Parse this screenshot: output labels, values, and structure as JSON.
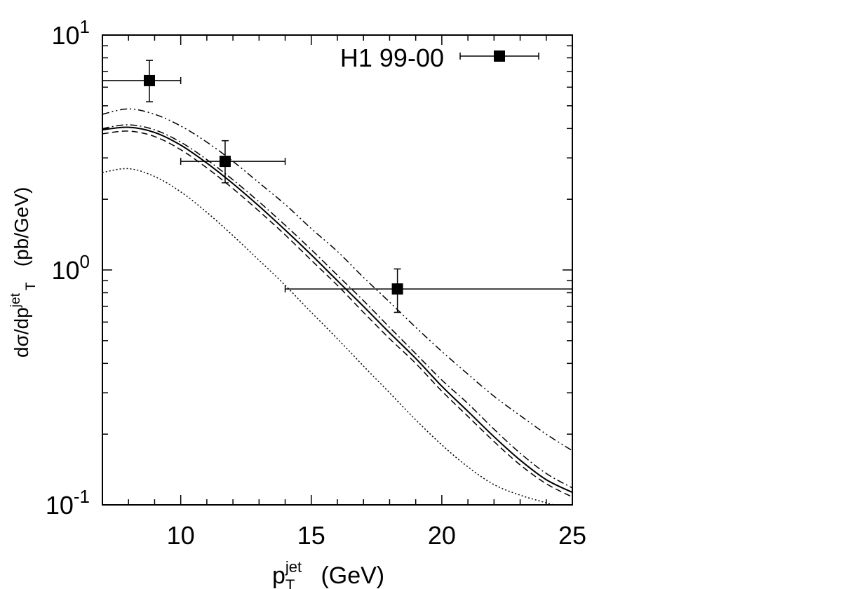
{
  "chart_data": {
    "type": "line",
    "title": "",
    "xlabel": {
      "main": "p",
      "sup": "jet",
      "sub": "T",
      "tail": " (GeV)"
    },
    "ylabel": {
      "main": "dσ/dp",
      "sup": "jet",
      "sub": "T",
      "tail": "  (pb/GeV)"
    },
    "xlim": [
      7,
      25
    ],
    "ylim": [
      0.1,
      10
    ],
    "yscale": "log",
    "x_ticks": [
      10,
      15,
      20,
      25
    ],
    "x_tick_labels": [
      "10",
      "15",
      "20",
      "25"
    ],
    "y_ticks": [
      {
        "value": 0.1,
        "base": "10",
        "exp": "-1"
      },
      {
        "value": 1,
        "base": "10",
        "exp": "0"
      },
      {
        "value": 10,
        "base": "10",
        "exp": "1"
      }
    ],
    "legend": {
      "label": "H1 99-00",
      "position": "top-right"
    },
    "data_points": [
      {
        "x": 8.8,
        "y": 6.4,
        "xerr": [
          7,
          10
        ],
        "yerr": [
          5.2,
          7.8
        ]
      },
      {
        "x": 11.7,
        "y": 2.9,
        "xerr": [
          10,
          14
        ],
        "yerr": [
          2.35,
          3.55
        ]
      },
      {
        "x": 18.3,
        "y": 0.83,
        "xerr": [
          14,
          25
        ],
        "yerr": [
          0.66,
          1.01
        ]
      }
    ],
    "series": [
      {
        "name": "dash-dot-dot (upper)",
        "style": "dashdotdot",
        "x": [
          7,
          8,
          9,
          10,
          11,
          12,
          13,
          14,
          15,
          16,
          17,
          18,
          19,
          20,
          21,
          22,
          23,
          24,
          25
        ],
        "y": [
          4.6,
          4.85,
          4.6,
          4.1,
          3.5,
          2.9,
          2.35,
          1.9,
          1.5,
          1.2,
          0.93,
          0.73,
          0.57,
          0.45,
          0.36,
          0.29,
          0.24,
          0.2,
          0.17
        ]
      },
      {
        "name": "dash-dot",
        "style": "dashdot",
        "x": [
          7,
          8,
          9,
          10,
          11,
          12,
          13,
          14,
          15,
          16,
          17,
          18,
          19,
          20,
          21,
          22,
          23,
          24,
          25
        ],
        "y": [
          4.0,
          4.15,
          3.95,
          3.5,
          2.95,
          2.42,
          1.95,
          1.55,
          1.22,
          0.95,
          0.74,
          0.57,
          0.44,
          0.34,
          0.27,
          0.21,
          0.166,
          0.136,
          0.118
        ]
      },
      {
        "name": "solid",
        "style": "solid",
        "x": [
          7,
          8,
          9,
          10,
          11,
          12,
          13,
          14,
          15,
          16,
          17,
          18,
          19,
          20,
          21,
          22,
          23,
          24,
          25
        ],
        "y": [
          3.95,
          4.05,
          3.85,
          3.4,
          2.85,
          2.33,
          1.87,
          1.48,
          1.16,
          0.9,
          0.7,
          0.54,
          0.42,
          0.32,
          0.25,
          0.195,
          0.155,
          0.128,
          0.113
        ]
      },
      {
        "name": "dashed",
        "style": "dashed",
        "x": [
          7,
          8,
          9,
          10,
          11,
          12,
          13,
          14,
          15,
          16,
          17,
          18,
          19,
          20,
          21,
          22,
          23,
          24,
          25
        ],
        "y": [
          3.8,
          3.9,
          3.7,
          3.25,
          2.72,
          2.22,
          1.78,
          1.41,
          1.1,
          0.86,
          0.66,
          0.51,
          0.4,
          0.305,
          0.238,
          0.186,
          0.148,
          0.123,
          0.108
        ]
      },
      {
        "name": "dotted (lower)",
        "style": "dotted",
        "x": [
          7,
          8,
          9,
          10,
          11,
          12,
          13,
          14,
          15,
          16,
          17,
          18,
          19,
          20,
          21,
          22,
          23,
          24,
          25
        ],
        "y": [
          2.6,
          2.7,
          2.5,
          2.15,
          1.76,
          1.4,
          1.1,
          0.86,
          0.66,
          0.51,
          0.39,
          0.3,
          0.23,
          0.18,
          0.145,
          0.122,
          0.11,
          0.102,
          0.095
        ]
      }
    ]
  }
}
